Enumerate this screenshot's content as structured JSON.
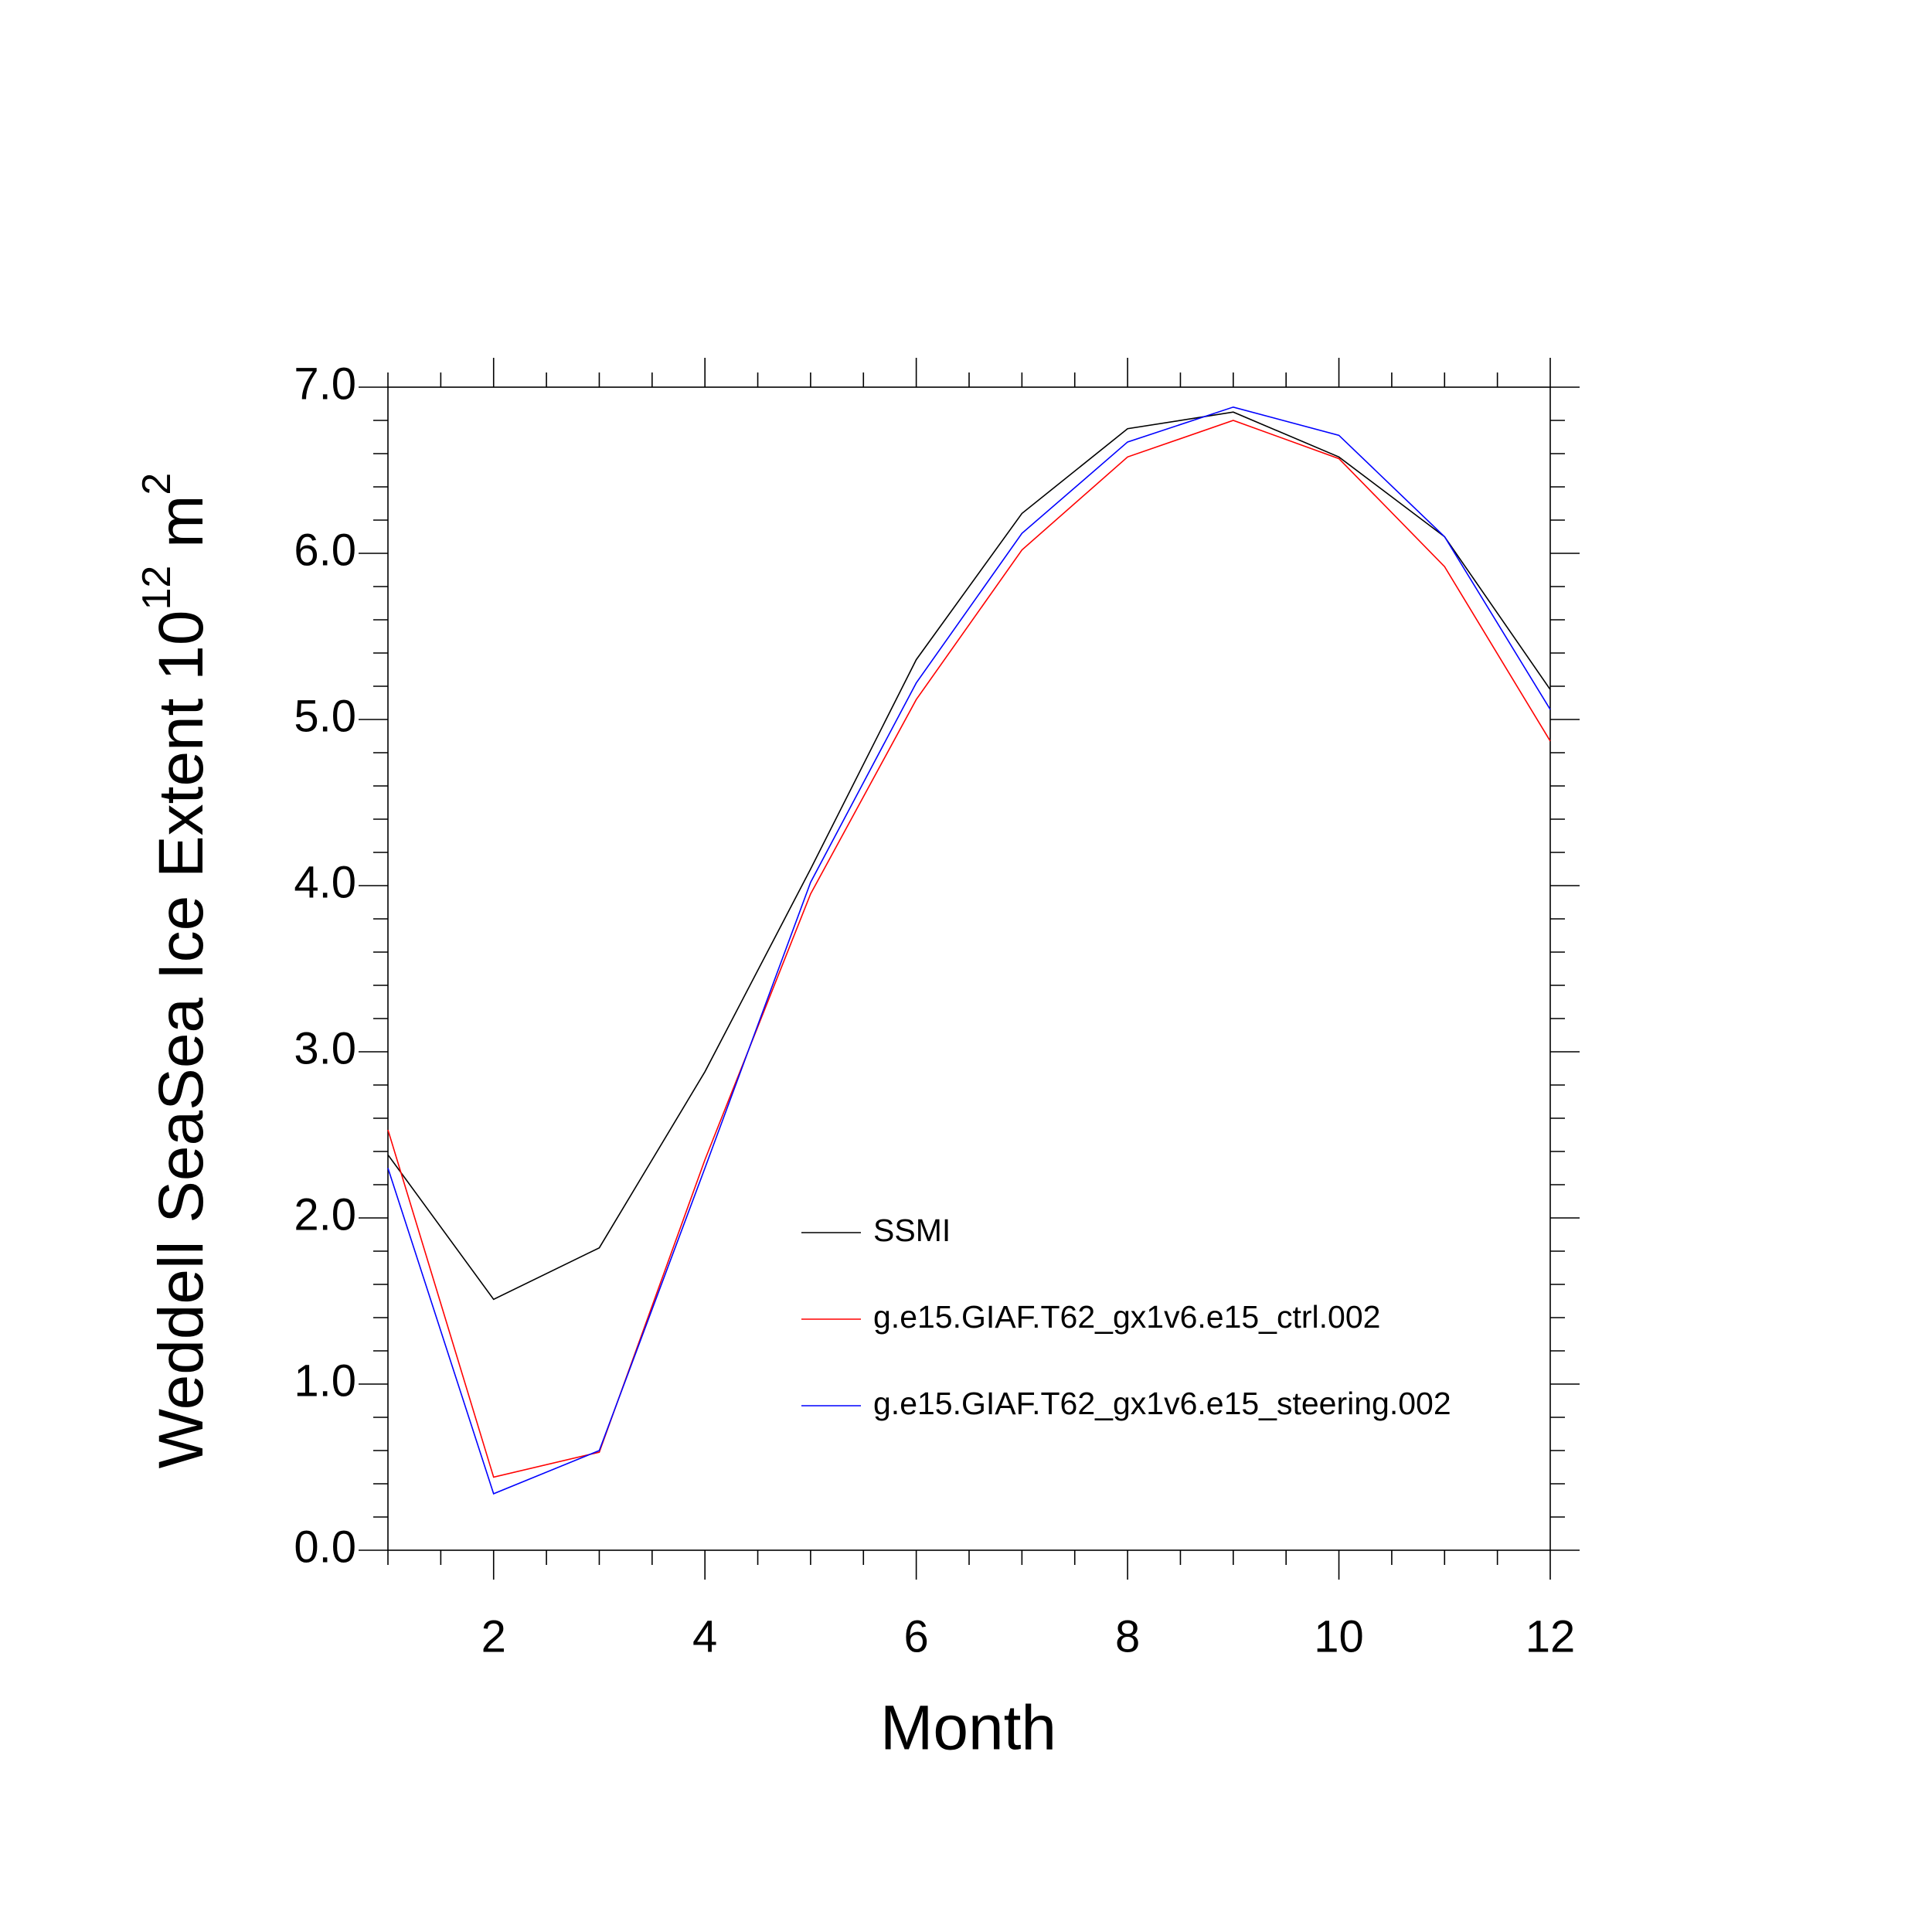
{
  "chart_data": {
    "type": "line",
    "xlabel": "Month",
    "ylabel": [
      "Weddell SeaSea Ice Extent 10",
      "12",
      " m",
      "2"
    ],
    "x": [
      1,
      2,
      3,
      4,
      5,
      6,
      7,
      8,
      9,
      10,
      11,
      12
    ],
    "series": [
      {
        "name": "SSMI",
        "color": "#000000",
        "values": [
          2.38,
          1.51,
          1.82,
          2.88,
          4.1,
          5.36,
          6.24,
          6.75,
          6.85,
          6.58,
          6.1,
          5.18
        ]
      },
      {
        "name": "g.e15.GIAF.T62_gx1v6.e15_ctrl.002",
        "color": "#ff0000",
        "values": [
          2.53,
          0.44,
          0.59,
          2.35,
          3.95,
          5.12,
          6.02,
          6.58,
          6.8,
          6.57,
          5.92,
          4.87
        ]
      },
      {
        "name": "g.e15.GIAF.T62_gx1v6.e15_steering.002",
        "color": "#0000ff",
        "values": [
          2.3,
          0.34,
          0.6,
          2.3,
          4.02,
          5.22,
          6.12,
          6.67,
          6.88,
          6.71,
          6.1,
          5.06
        ]
      }
    ],
    "xlim": [
      1,
      12
    ],
    "xticks": [
      2,
      4,
      6,
      8,
      10,
      12
    ],
    "xminor_ticks": [
      1,
      1.5,
      2.5,
      3,
      3.5,
      4.5,
      5,
      5.5,
      6.5,
      7,
      7.5,
      8.5,
      9,
      9.5,
      10.5,
      11,
      11.5
    ],
    "ylim": [
      0,
      7
    ],
    "yticks": [
      {
        "value": 0,
        "label": "0.0"
      },
      {
        "value": 1,
        "label": "1.0"
      },
      {
        "value": 2,
        "label": "2.0"
      },
      {
        "value": 3,
        "label": "3.0"
      },
      {
        "value": 4,
        "label": "4.0"
      },
      {
        "value": 5,
        "label": "5.0"
      },
      {
        "value": 6,
        "label": "6.0"
      },
      {
        "value": 7,
        "label": "7.0"
      }
    ],
    "yminor_ticks": [
      0.2,
      0.4,
      0.6,
      0.8,
      1.2,
      1.4,
      1.6,
      1.8,
      2.2,
      2.4,
      2.6,
      2.8,
      3.2,
      3.4,
      3.6,
      3.8,
      4.2,
      4.4,
      4.6,
      4.8,
      5.2,
      5.4,
      5.6,
      5.8,
      6.2,
      6.4,
      6.6,
      6.8
    ],
    "grid": false
  }
}
